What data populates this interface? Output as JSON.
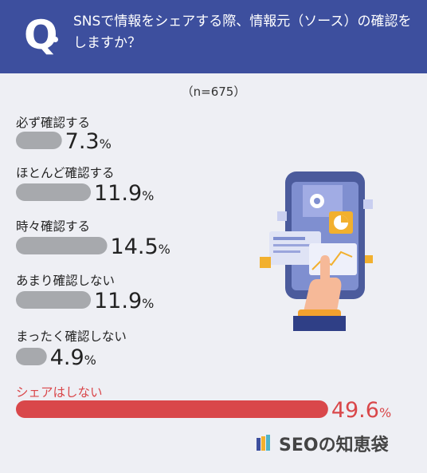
{
  "header": {
    "q_mark": "Q",
    "question": "SNSで情報をシェアする際、情報元（ソース）の確認をしますか？"
  },
  "note": "（n=675）",
  "chart_data": {
    "type": "bar",
    "orientation": "horizontal",
    "unit": "%",
    "categories": [
      "必ず確認する",
      "ほとんど確認する",
      "時々確認する",
      "あまり確認しない",
      "まったく確認しない",
      "シェアはしない"
    ],
    "values": [
      7.3,
      11.9,
      14.5,
      11.9,
      4.9,
      49.6
    ],
    "labels": [
      "7.3",
      "11.9",
      "14.5",
      "11.9",
      "4.9",
      "49.6"
    ],
    "highlight_index": 5,
    "colors": {
      "bar": "#a7a9ad",
      "highlight": "#d9474a",
      "text": "#222222"
    }
  },
  "logo": {
    "text": "SEOの知恵袋"
  }
}
